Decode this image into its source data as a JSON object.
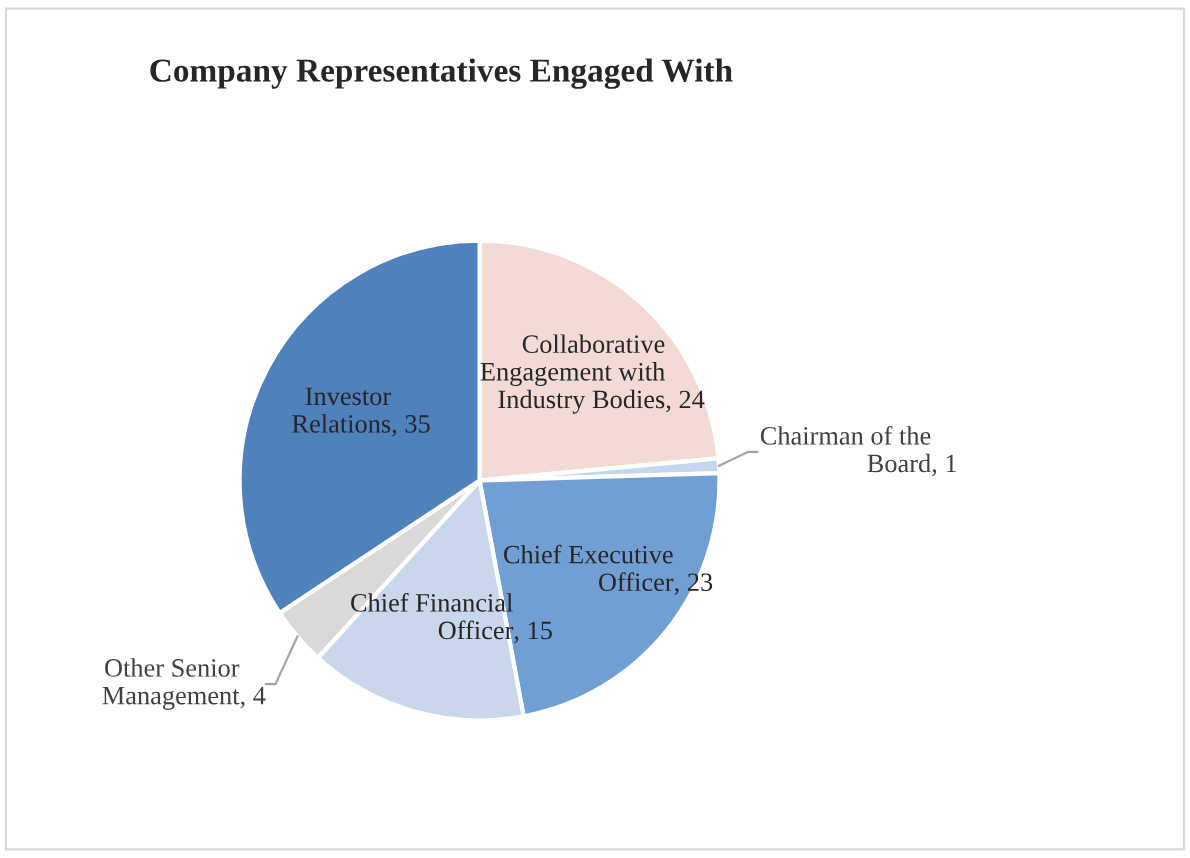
{
  "chart_data": {
    "type": "pie",
    "title": "Company Representatives Engaged With",
    "categories": [
      "Collaborative Engagement with Industry Bodies",
      "Chairman of the Board",
      "Chief Executive Officer",
      "Chief Financial Officer",
      "Other Senior Management",
      "Investor Relations"
    ],
    "values": [
      24,
      1,
      23,
      15,
      4,
      35
    ],
    "colors": [
      "#f2dbd5",
      "#c6d7ec",
      "#729fd3",
      "#c9d7ea",
      "#d9d9d9",
      "#4f81bd"
    ],
    "value_labels": [
      ", 24",
      ", 1",
      ", 23",
      ", 15",
      ", 4",
      ", 35"
    ],
    "legend": false
  }
}
